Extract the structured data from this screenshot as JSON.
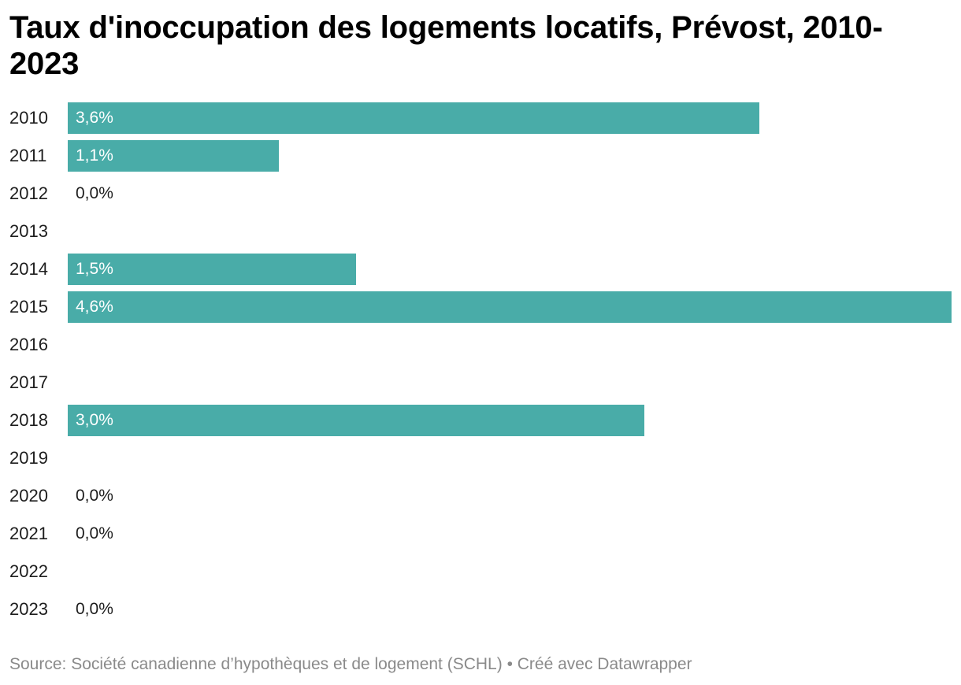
{
  "title": "Taux d'inoccupation des logements locatifs, Prévost, 2010-2023",
  "source": "Source: Société canadienne d’hypothèques et de logement (SCHL) • Créé avec Datawrapper",
  "colors": {
    "bar": "#49aca8",
    "text": "#1d1d1d",
    "source": "#8a8a8a"
  },
  "chart_data": {
    "type": "bar",
    "orientation": "horizontal",
    "title": "Taux d'inoccupation des logements locatifs, Prévost, 2010-2023",
    "categories": [
      "2010",
      "2011",
      "2012",
      "2013",
      "2014",
      "2015",
      "2016",
      "2017",
      "2018",
      "2019",
      "2020",
      "2021",
      "2022",
      "2023"
    ],
    "values": [
      3.6,
      1.1,
      0.0,
      null,
      1.5,
      4.6,
      null,
      null,
      3.0,
      null,
      0.0,
      0.0,
      null,
      0.0
    ],
    "value_labels": [
      "3,6%",
      "1,1%",
      "0,0%",
      "",
      "1,5%",
      "4,6%",
      "",
      "",
      "3,0%",
      "",
      "0,0%",
      "0,0%",
      "",
      "0,0%"
    ],
    "xlim": [
      0,
      4.6
    ],
    "grid": false,
    "legend": "none"
  }
}
